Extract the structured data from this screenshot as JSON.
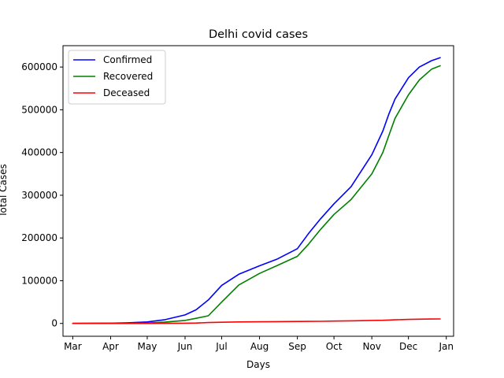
{
  "chart_data": {
    "type": "line",
    "title": "Delhi covid cases",
    "xlabel": "Days",
    "ylabel": "Total Cases",
    "x_ticks": [
      "Mar",
      "Apr",
      "May",
      "Jun",
      "Jul",
      "Aug",
      "Sep",
      "Oct",
      "Nov",
      "Dec",
      "Jan"
    ],
    "xlim": [
      "2020-02-22",
      "2021-01-07"
    ],
    "ylim": [
      -30000,
      650000
    ],
    "y_ticks": [
      0,
      100000,
      200000,
      300000,
      400000,
      500000,
      600000
    ],
    "y_tick_labels": [
      "0",
      "100000",
      "200000",
      "300000",
      "400000",
      "500000",
      "600000"
    ],
    "legend": {
      "placement": "upper-left"
    },
    "grid": false,
    "x": [
      "2020-03-01",
      "2020-04-01",
      "2020-04-15",
      "2020-05-01",
      "2020-05-15",
      "2020-06-01",
      "2020-06-10",
      "2020-06-20",
      "2020-07-01",
      "2020-07-15",
      "2020-08-01",
      "2020-08-15",
      "2020-09-01",
      "2020-09-10",
      "2020-09-20",
      "2020-10-01",
      "2020-10-15",
      "2020-11-01",
      "2020-11-10",
      "2020-11-15",
      "2020-11-20",
      "2020-12-01",
      "2020-12-10",
      "2020-12-20",
      "2020-12-27"
    ],
    "series": [
      {
        "name": "Confirmed",
        "color": "#0000ff",
        "values": [
          0,
          500,
          1500,
          3500,
          8500,
          20000,
          32000,
          55000,
          89000,
          115000,
          135000,
          150000,
          175000,
          210000,
          245000,
          280000,
          320000,
          395000,
          450000,
          490000,
          525000,
          575000,
          600000,
          615000,
          622000
        ]
      },
      {
        "name": "Recovered",
        "color": "#008000",
        "values": [
          0,
          0,
          300,
          1000,
          3000,
          7000,
          12000,
          18000,
          50000,
          90000,
          117000,
          135000,
          157000,
          185000,
          220000,
          255000,
          290000,
          350000,
          400000,
          440000,
          480000,
          535000,
          570000,
          595000,
          603000
        ]
      },
      {
        "name": "Deceased",
        "color": "#ff0000",
        "values": [
          0,
          0,
          10,
          60,
          200,
          600,
          1000,
          2000,
          2800,
          3500,
          4000,
          4300,
          4600,
          4800,
          5100,
          5600,
          6200,
          7000,
          7500,
          8000,
          8500,
          9500,
          10000,
          10400,
          10500
        ]
      }
    ]
  }
}
